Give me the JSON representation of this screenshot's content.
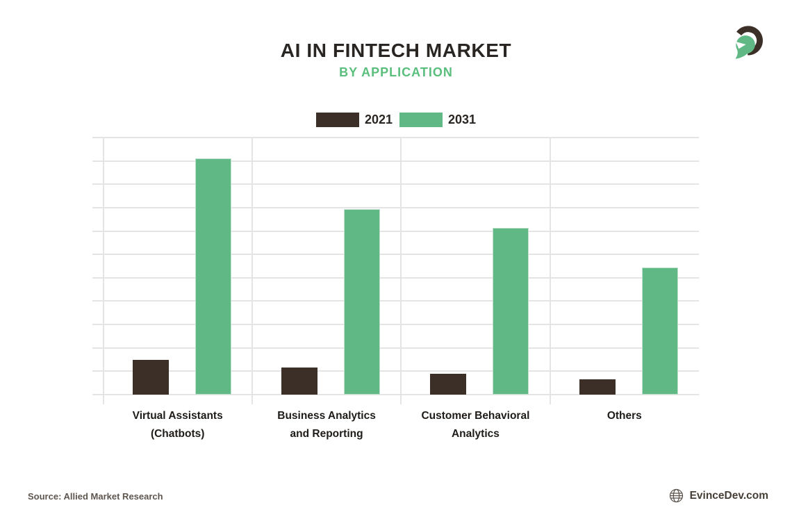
{
  "header": {
    "title": "AI IN FINTECH MARKET",
    "subtitle": "BY APPLICATION"
  },
  "footer": {
    "source": "Source: Allied Market Research",
    "website": "EvinceDev.com"
  },
  "icons": {
    "brand_logo": "evincedev-spartan-helmet-icon",
    "globe": "globe-icon"
  },
  "colors": {
    "background": "#ffffff",
    "title_text": "#282522",
    "subtitle_green": "#5abe7d",
    "gridline": "#e4e4e4",
    "bar_2021_dark": "#3b2f28",
    "bar_2031_green": "#60b884",
    "category_text": "#1e1b18",
    "source_text": "#5e564f",
    "website_text": "#453e37"
  },
  "chart_data": {
    "type": "bar",
    "title": "AI IN FINTECH MARKET",
    "subtitle": "BY APPLICATION",
    "categories": [
      "Virtual Assistants\n(Chatbots)",
      "Business Analytics\nand Reporting",
      "Customer Behavioral\nAnalytics",
      "Others"
    ],
    "series": [
      {
        "name": "2021",
        "color": "#3b2f28",
        "values": [
          1.5,
          1.15,
          0.9,
          0.65
        ]
      },
      {
        "name": "2031",
        "color": "#60b884",
        "values": [
          10.1,
          7.95,
          7.15,
          5.45
        ]
      }
    ],
    "ylabel": "",
    "xlabel": "",
    "ylim": [
      0,
      11
    ],
    "y_axis_note": "no numeric tick labels shown; values estimated in gridline units (1 unit = 1 horizontal gridline interval)",
    "grid": "on",
    "layout": {
      "h_gridlines": 12,
      "v_gridlines": 4,
      "legend_position": "top-center"
    }
  }
}
